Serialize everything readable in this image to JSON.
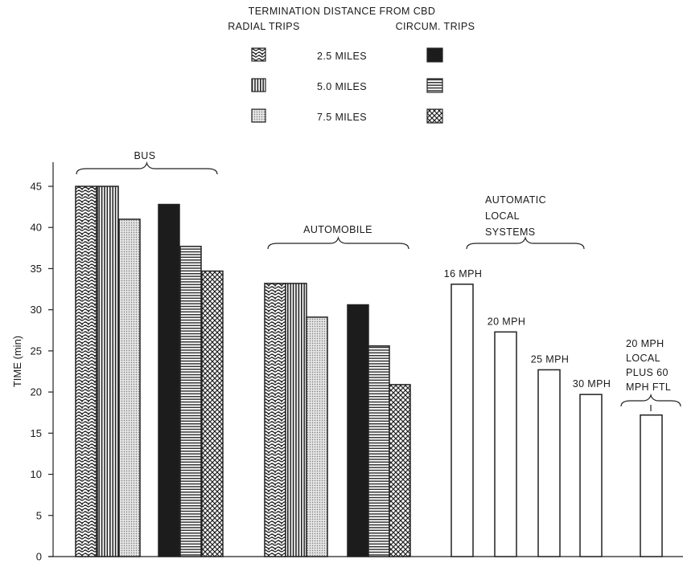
{
  "legend": {
    "title": "TERMINATION DISTANCE FROM CBD",
    "left_header": "RADIAL TRIPS",
    "right_header": "CIRCUM. TRIPS",
    "rows": [
      {
        "label": "2.5 MILES",
        "radial_pattern": "wavy",
        "circum_pattern": "solid"
      },
      {
        "label": "5.0 MILES",
        "radial_pattern": "vertical",
        "circum_pattern": "horizontal"
      },
      {
        "label": "7.5 MILES",
        "radial_pattern": "dots",
        "circum_pattern": "crosshatch"
      }
    ]
  },
  "chart_data": {
    "type": "bar",
    "ylabel": "TIME (min)",
    "ylim": [
      0,
      45
    ],
    "yticks": [
      0,
      5,
      10,
      15,
      20,
      25,
      30,
      35,
      40,
      45
    ],
    "grid": false,
    "groups": [
      {
        "label": "BUS",
        "bars": [
          {
            "series": "2.5 MILES radial",
            "pattern": "wavy",
            "value": 45
          },
          {
            "series": "5.0 MILES radial",
            "pattern": "vertical",
            "value": 45
          },
          {
            "series": "7.5 MILES radial",
            "pattern": "dots",
            "value": 41
          },
          {
            "series": "2.5 MILES circum",
            "pattern": "solid",
            "value": 42.8
          },
          {
            "series": "5.0 MILES circum",
            "pattern": "horizontal",
            "value": 37.7
          },
          {
            "series": "7.5 MILES circum",
            "pattern": "crosshatch",
            "value": 34.7
          }
        ]
      },
      {
        "label": "AUTOMOBILE",
        "bars": [
          {
            "series": "2.5 MILES radial",
            "pattern": "wavy",
            "value": 33.2
          },
          {
            "series": "5.0 MILES radial",
            "pattern": "vertical",
            "value": 33.2
          },
          {
            "series": "7.5 MILES radial",
            "pattern": "dots",
            "value": 29.1
          },
          {
            "series": "2.5 MILES circum",
            "pattern": "solid",
            "value": 30.6
          },
          {
            "series": "5.0 MILES circum",
            "pattern": "horizontal",
            "value": 25.6
          },
          {
            "series": "7.5 MILES circum",
            "pattern": "crosshatch",
            "value": 20.9
          }
        ]
      },
      {
        "label_lines": [
          "AUTOMATIC",
          "LOCAL",
          "SYSTEMS"
        ],
        "bars": [
          {
            "label": "16 MPH",
            "pattern": "blank",
            "value": 33.1
          },
          {
            "label": "20 MPH",
            "pattern": "blank",
            "value": 27.3
          },
          {
            "label": "25 MPH",
            "pattern": "blank",
            "value": 22.7
          },
          {
            "label": "30 MPH",
            "pattern": "blank",
            "value": 19.7
          }
        ]
      },
      {
        "label_lines": [
          "20 MPH",
          "LOCAL",
          "PLUS 60",
          "MPH FTL"
        ],
        "bars": [
          {
            "pattern": "blank",
            "value": 17.2
          }
        ]
      }
    ]
  }
}
